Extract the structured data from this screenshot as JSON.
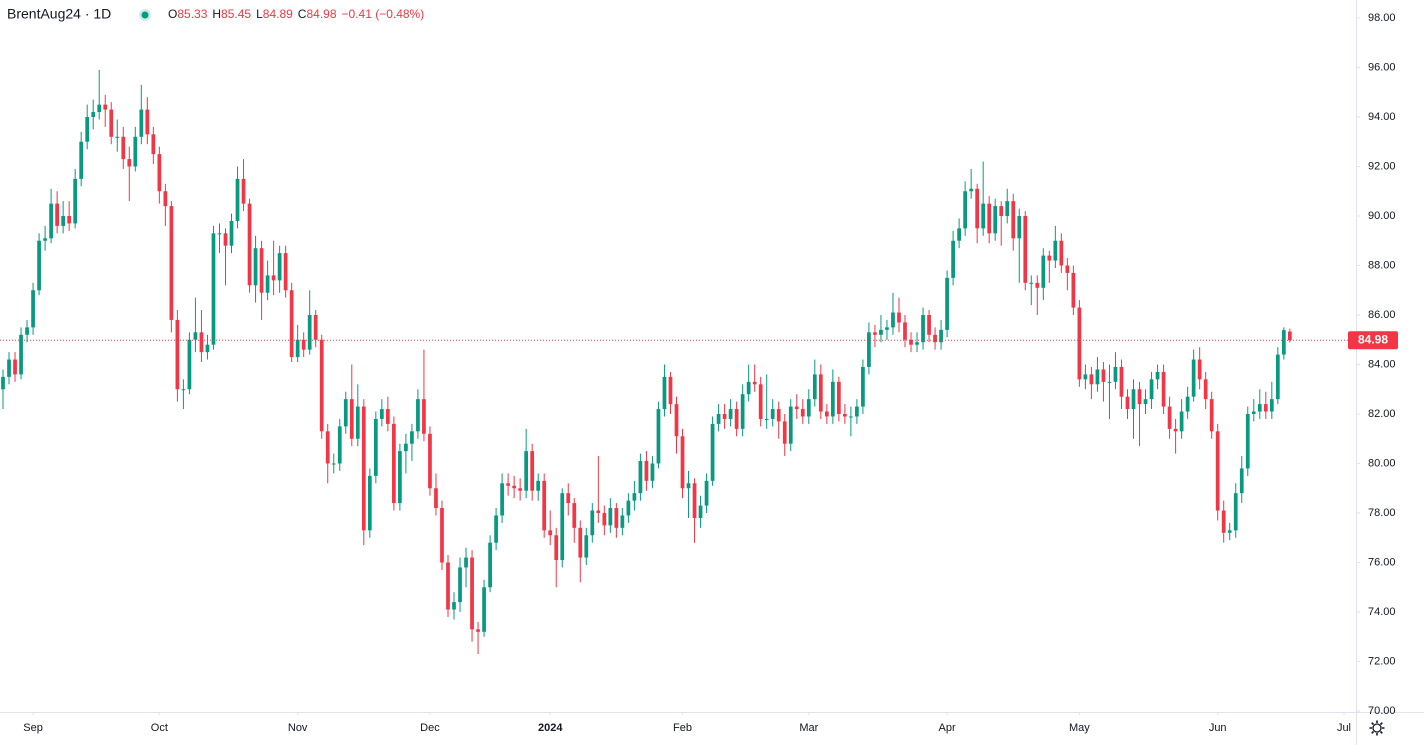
{
  "chart_data": {
    "type": "candlestick",
    "symbol": "BrentAug24 · 1D",
    "ohlc_letters": [
      "O",
      "H",
      "L",
      "C"
    ],
    "change": "−0.41 (−0.48%)",
    "up_color": "#089981",
    "down_color": "#f23645",
    "grid": false,
    "last_price_line": true,
    "xlim": [
      -0.5,
      225
    ],
    "xticks": [
      {
        "value": 5,
        "label": "Sep"
      },
      {
        "value": 26,
        "label": "Oct"
      },
      {
        "value": 49,
        "label": "Nov"
      },
      {
        "value": 71,
        "label": "Dec"
      },
      {
        "value": 91,
        "label": "2024"
      },
      {
        "value": 113,
        "label": "Feb"
      },
      {
        "value": 134,
        "label": "Mar"
      },
      {
        "value": 157,
        "label": "Apr"
      },
      {
        "value": 179,
        "label": "May"
      },
      {
        "value": 202,
        "label": "Jun"
      },
      {
        "value": 223,
        "label": "Jul"
      }
    ],
    "ylim": [
      70,
      98
    ],
    "yticks": [
      {
        "value": 70,
        "label": "70.00"
      },
      {
        "value": 72,
        "label": "72.00"
      },
      {
        "value": 74,
        "label": "74.00"
      },
      {
        "value": 76,
        "label": "76.00"
      },
      {
        "value": 78,
        "label": "78.00"
      },
      {
        "value": 80,
        "label": "80.00"
      },
      {
        "value": 82,
        "label": "82.00"
      },
      {
        "value": 84,
        "label": "84.00"
      },
      {
        "value": 86,
        "label": "86.00"
      },
      {
        "value": 88,
        "label": "88.00"
      },
      {
        "value": 90,
        "label": "90.00"
      },
      {
        "value": 92,
        "label": "92.00"
      },
      {
        "value": 94,
        "label": "94.00"
      },
      {
        "value": 96,
        "label": "96.00"
      },
      {
        "value": 98,
        "label": "98.00"
      }
    ],
    "candles": [
      [
        83.0,
        83.8,
        82.2,
        83.5
      ],
      [
        83.5,
        84.5,
        83.2,
        84.2
      ],
      [
        84.2,
        84.5,
        83.3,
        83.6
      ],
      [
        83.6,
        85.5,
        83.4,
        85.2
      ],
      [
        85.2,
        85.8,
        84.9,
        85.5
      ],
      [
        85.5,
        87.3,
        85.2,
        87.0
      ],
      [
        87.0,
        89.3,
        86.8,
        89.0
      ],
      [
        89.0,
        89.6,
        88.6,
        89.1
      ],
      [
        89.1,
        91.1,
        88.9,
        90.5
      ],
      [
        90.5,
        91.0,
        89.3,
        89.6
      ],
      [
        89.6,
        90.6,
        89.3,
        90.0
      ],
      [
        90.0,
        90.6,
        89.4,
        89.7
      ],
      [
        89.7,
        91.9,
        89.5,
        91.5
      ],
      [
        91.5,
        93.4,
        91.2,
        93.0
      ],
      [
        93.0,
        94.5,
        92.7,
        94.0
      ],
      [
        94.0,
        94.7,
        93.5,
        94.2
      ],
      [
        94.2,
        95.9,
        93.9,
        94.5
      ],
      [
        94.5,
        94.9,
        93.6,
        94.3
      ],
      [
        94.3,
        94.6,
        92.9,
        93.2
      ],
      [
        93.2,
        93.9,
        92.6,
        93.2
      ],
      [
        93.2,
        93.6,
        91.9,
        92.3
      ],
      [
        92.3,
        92.8,
        90.6,
        92.0
      ],
      [
        92.0,
        93.6,
        91.8,
        93.2
      ],
      [
        93.2,
        95.3,
        92.9,
        94.3
      ],
      [
        94.3,
        94.8,
        92.9,
        93.3
      ],
      [
        93.3,
        93.6,
        92.1,
        92.5
      ],
      [
        92.5,
        92.8,
        90.5,
        91.0
      ],
      [
        91.0,
        91.3,
        89.6,
        90.4
      ],
      [
        90.4,
        90.6,
        85.3,
        85.8
      ],
      [
        85.8,
        86.2,
        82.5,
        83.0
      ],
      [
        83.0,
        83.4,
        82.2,
        83.0
      ],
      [
        83.0,
        85.3,
        82.8,
        85.0
      ],
      [
        85.0,
        86.7,
        84.5,
        85.3
      ],
      [
        85.3,
        86.2,
        84.1,
        84.5
      ],
      [
        84.5,
        85.2,
        84.2,
        84.8
      ],
      [
        84.8,
        89.6,
        84.6,
        89.3
      ],
      [
        89.3,
        89.7,
        88.5,
        89.3
      ],
      [
        89.3,
        89.5,
        87.2,
        88.8
      ],
      [
        88.8,
        90.1,
        88.5,
        89.8
      ],
      [
        89.8,
        92.0,
        89.5,
        91.5
      ],
      [
        91.5,
        92.3,
        90.2,
        90.5
      ],
      [
        90.5,
        90.7,
        86.9,
        87.2
      ],
      [
        87.2,
        89.2,
        86.5,
        88.7
      ],
      [
        88.7,
        89.0,
        85.8,
        86.9
      ],
      [
        86.9,
        88.2,
        86.6,
        87.6
      ],
      [
        87.6,
        89.0,
        86.8,
        87.4
      ],
      [
        87.4,
        88.8,
        86.9,
        88.5
      ],
      [
        88.5,
        88.8,
        86.7,
        87.0
      ],
      [
        87.0,
        87.3,
        84.1,
        84.3
      ],
      [
        84.3,
        85.6,
        84.1,
        85.0
      ],
      [
        85.0,
        85.3,
        84.3,
        84.6
      ],
      [
        84.6,
        87.0,
        84.4,
        86.0
      ],
      [
        86.0,
        86.2,
        84.7,
        85.0
      ],
      [
        85.0,
        85.2,
        81.0,
        81.3
      ],
      [
        81.3,
        81.6,
        79.2,
        80.0
      ],
      [
        80.0,
        80.4,
        79.6,
        80.0
      ],
      [
        80.0,
        81.8,
        79.7,
        81.5
      ],
      [
        81.5,
        82.9,
        81.2,
        82.6
      ],
      [
        82.6,
        84.0,
        80.7,
        81.0
      ],
      [
        81.0,
        83.2,
        80.7,
        82.3
      ],
      [
        82.3,
        82.6,
        76.7,
        77.3
      ],
      [
        77.3,
        79.8,
        77.0,
        79.5
      ],
      [
        79.5,
        82.1,
        79.2,
        81.8
      ],
      [
        81.8,
        82.6,
        81.5,
        82.2
      ],
      [
        82.2,
        82.7,
        81.3,
        81.6
      ],
      [
        81.6,
        81.9,
        78.1,
        78.4
      ],
      [
        78.4,
        80.8,
        78.1,
        80.5
      ],
      [
        80.5,
        81.2,
        79.6,
        80.8
      ],
      [
        80.8,
        81.6,
        80.1,
        81.3
      ],
      [
        81.3,
        83.0,
        81.0,
        82.6
      ],
      [
        82.6,
        84.6,
        80.9,
        81.2
      ],
      [
        81.2,
        81.5,
        78.7,
        79.0
      ],
      [
        79.0,
        79.6,
        77.9,
        78.2
      ],
      [
        78.2,
        78.5,
        75.7,
        76.0
      ],
      [
        76.0,
        76.3,
        73.8,
        74.1
      ],
      [
        74.1,
        74.8,
        73.7,
        74.4
      ],
      [
        74.4,
        76.2,
        74.0,
        75.8
      ],
      [
        75.8,
        76.6,
        75.0,
        76.2
      ],
      [
        76.2,
        76.5,
        72.8,
        73.3
      ],
      [
        73.3,
        73.6,
        72.3,
        73.2
      ],
      [
        73.2,
        75.3,
        73.0,
        75.0
      ],
      [
        75.0,
        77.1,
        74.8,
        76.8
      ],
      [
        76.8,
        78.2,
        76.5,
        77.9
      ],
      [
        77.9,
        79.6,
        77.6,
        79.2
      ],
      [
        79.2,
        79.6,
        78.7,
        79.1
      ],
      [
        79.1,
        79.5,
        78.6,
        79.0
      ],
      [
        79.0,
        79.4,
        78.5,
        78.9
      ],
      [
        78.9,
        81.4,
        78.6,
        80.5
      ],
      [
        80.5,
        80.8,
        78.5,
        78.9
      ],
      [
        78.9,
        79.6,
        78.5,
        79.3
      ],
      [
        79.3,
        79.6,
        77.0,
        77.3
      ],
      [
        77.3,
        78.1,
        76.7,
        77.1
      ],
      [
        77.1,
        77.4,
        75.0,
        76.1
      ],
      [
        76.1,
        79.0,
        75.8,
        78.8
      ],
      [
        78.8,
        79.2,
        77.9,
        78.4
      ],
      [
        78.4,
        78.6,
        76.8,
        77.4
      ],
      [
        77.4,
        77.7,
        75.2,
        76.2
      ],
      [
        76.2,
        77.4,
        75.9,
        77.1
      ],
      [
        77.1,
        78.4,
        76.8,
        78.1
      ],
      [
        78.1,
        80.3,
        77.6,
        78.0
      ],
      [
        78.0,
        78.3,
        77.1,
        77.5
      ],
      [
        77.5,
        78.6,
        77.2,
        78.2
      ],
      [
        78.2,
        78.4,
        77.0,
        77.4
      ],
      [
        77.4,
        78.2,
        77.1,
        77.9
      ],
      [
        77.9,
        78.8,
        77.6,
        78.5
      ],
      [
        78.5,
        79.3,
        78.1,
        78.8
      ],
      [
        78.8,
        80.4,
        78.5,
        80.1
      ],
      [
        80.1,
        80.5,
        78.9,
        79.3
      ],
      [
        79.3,
        80.3,
        79.0,
        80.0
      ],
      [
        80.0,
        82.5,
        79.8,
        82.2
      ],
      [
        82.2,
        84.0,
        81.9,
        83.5
      ],
      [
        83.5,
        83.7,
        82.0,
        82.4
      ],
      [
        82.4,
        82.7,
        80.4,
        81.1
      ],
      [
        81.1,
        81.4,
        78.6,
        79.0
      ],
      [
        79.0,
        79.7,
        77.8,
        79.2
      ],
      [
        79.2,
        79.4,
        76.8,
        77.8
      ],
      [
        77.8,
        78.7,
        77.4,
        78.3
      ],
      [
        78.3,
        79.6,
        78.0,
        79.3
      ],
      [
        79.3,
        81.9,
        79.1,
        81.6
      ],
      [
        81.6,
        82.4,
        81.3,
        82.0
      ],
      [
        82.0,
        82.4,
        81.4,
        81.8
      ],
      [
        81.8,
        82.6,
        81.5,
        82.2
      ],
      [
        82.2,
        82.5,
        81.1,
        81.4
      ],
      [
        81.4,
        83.2,
        81.1,
        82.8
      ],
      [
        82.8,
        84.0,
        82.5,
        83.3
      ],
      [
        83.3,
        84.0,
        82.9,
        83.2
      ],
      [
        83.2,
        83.5,
        81.5,
        81.8
      ],
      [
        81.8,
        83.6,
        81.4,
        81.8
      ],
      [
        81.8,
        82.6,
        81.5,
        82.2
      ],
      [
        82.2,
        82.5,
        81.0,
        81.7
      ],
      [
        81.7,
        82.0,
        80.3,
        80.8
      ],
      [
        80.8,
        82.6,
        80.5,
        82.3
      ],
      [
        82.3,
        82.8,
        81.8,
        82.2
      ],
      [
        82.2,
        82.6,
        81.6,
        81.9
      ],
      [
        81.9,
        83.0,
        81.6,
        82.6
      ],
      [
        82.6,
        84.2,
        82.3,
        83.6
      ],
      [
        83.6,
        84.0,
        81.8,
        82.1
      ],
      [
        82.1,
        82.4,
        81.6,
        81.9
      ],
      [
        81.9,
        83.8,
        81.6,
        83.3
      ],
      [
        83.3,
        83.5,
        81.7,
        82.0
      ],
      [
        82.0,
        82.4,
        81.6,
        81.9
      ],
      [
        81.9,
        82.3,
        81.1,
        81.9
      ],
      [
        81.9,
        82.6,
        81.6,
        82.3
      ],
      [
        82.3,
        84.2,
        82.0,
        83.9
      ],
      [
        83.9,
        85.7,
        83.6,
        85.3
      ],
      [
        85.3,
        85.6,
        84.7,
        85.2
      ],
      [
        85.2,
        86.0,
        84.9,
        85.4
      ],
      [
        85.4,
        85.8,
        85.0,
        85.5
      ],
      [
        85.5,
        86.9,
        85.2,
        86.1
      ],
      [
        86.1,
        86.7,
        85.3,
        85.7
      ],
      [
        85.7,
        86.0,
        84.7,
        85.0
      ],
      [
        85.0,
        85.3,
        84.5,
        84.8
      ],
      [
        84.8,
        85.3,
        84.5,
        84.9
      ],
      [
        84.9,
        86.3,
        84.6,
        86.0
      ],
      [
        86.0,
        86.2,
        84.9,
        85.2
      ],
      [
        85.2,
        85.5,
        84.6,
        84.9
      ],
      [
        84.9,
        85.8,
        84.6,
        85.4
      ],
      [
        85.4,
        87.8,
        85.1,
        87.5
      ],
      [
        87.5,
        89.4,
        87.2,
        89.0
      ],
      [
        89.0,
        89.9,
        88.7,
        89.5
      ],
      [
        89.5,
        91.4,
        89.2,
        91.0
      ],
      [
        91.0,
        91.9,
        90.7,
        91.1
      ],
      [
        91.1,
        91.3,
        88.9,
        89.5
      ],
      [
        89.5,
        92.2,
        89.2,
        90.5
      ],
      [
        90.5,
        90.8,
        88.9,
        89.3
      ],
      [
        89.3,
        90.7,
        89.0,
        90.4
      ],
      [
        90.4,
        90.6,
        88.8,
        90.0
      ],
      [
        90.0,
        91.1,
        89.7,
        90.6
      ],
      [
        90.6,
        90.9,
        88.6,
        89.1
      ],
      [
        89.1,
        90.3,
        87.3,
        90.0
      ],
      [
        90.0,
        90.2,
        87.0,
        87.3
      ],
      [
        87.3,
        87.6,
        86.4,
        87.3
      ],
      [
        87.3,
        87.6,
        86.0,
        87.1
      ],
      [
        87.1,
        88.7,
        86.6,
        88.4
      ],
      [
        88.4,
        88.6,
        87.3,
        88.2
      ],
      [
        88.2,
        89.6,
        87.9,
        89.0
      ],
      [
        89.0,
        89.3,
        87.7,
        88.0
      ],
      [
        88.0,
        88.3,
        87.0,
        87.7
      ],
      [
        87.7,
        88.0,
        86.0,
        86.3
      ],
      [
        86.3,
        86.6,
        83.1,
        83.4
      ],
      [
        83.4,
        84.0,
        83.0,
        83.6
      ],
      [
        83.6,
        83.9,
        82.6,
        83.2
      ],
      [
        83.2,
        84.3,
        82.9,
        83.8
      ],
      [
        83.8,
        84.1,
        82.5,
        83.3
      ],
      [
        83.3,
        84.0,
        81.8,
        83.3
      ],
      [
        83.3,
        84.5,
        83.0,
        83.9
      ],
      [
        83.9,
        84.2,
        82.2,
        82.7
      ],
      [
        82.7,
        83.0,
        81.8,
        82.2
      ],
      [
        82.2,
        83.4,
        81.0,
        83.0
      ],
      [
        83.0,
        83.3,
        80.7,
        82.4
      ],
      [
        82.4,
        83.0,
        82.0,
        82.6
      ],
      [
        82.6,
        83.7,
        82.2,
        83.4
      ],
      [
        83.4,
        84.0,
        83.0,
        83.7
      ],
      [
        83.7,
        84.0,
        82.0,
        82.3
      ],
      [
        82.3,
        82.7,
        81.0,
        81.4
      ],
      [
        81.4,
        81.8,
        80.4,
        81.3
      ],
      [
        81.3,
        82.6,
        81.0,
        82.1
      ],
      [
        82.1,
        83.1,
        81.8,
        82.7
      ],
      [
        82.7,
        84.6,
        82.5,
        84.2
      ],
      [
        84.2,
        84.7,
        83.0,
        83.4
      ],
      [
        83.4,
        83.7,
        82.2,
        82.6
      ],
      [
        82.6,
        82.9,
        81.0,
        81.3
      ],
      [
        81.3,
        81.6,
        77.7,
        78.1
      ],
      [
        78.1,
        78.5,
        76.8,
        77.2
      ],
      [
        77.2,
        77.6,
        76.9,
        77.3
      ],
      [
        77.3,
        79.2,
        77.0,
        78.8
      ],
      [
        78.8,
        80.3,
        78.4,
        79.8
      ],
      [
        79.8,
        82.3,
        79.5,
        82.0
      ],
      [
        82.0,
        82.6,
        81.7,
        82.1
      ],
      [
        82.1,
        83.0,
        81.8,
        82.4
      ],
      [
        82.4,
        82.9,
        81.8,
        82.1
      ],
      [
        82.1,
        83.3,
        81.8,
        82.6
      ],
      [
        82.6,
        84.7,
        82.4,
        84.4
      ],
      [
        84.4,
        85.5,
        84.2,
        85.39
      ],
      [
        85.33,
        85.45,
        84.89,
        84.98
      ]
    ]
  }
}
